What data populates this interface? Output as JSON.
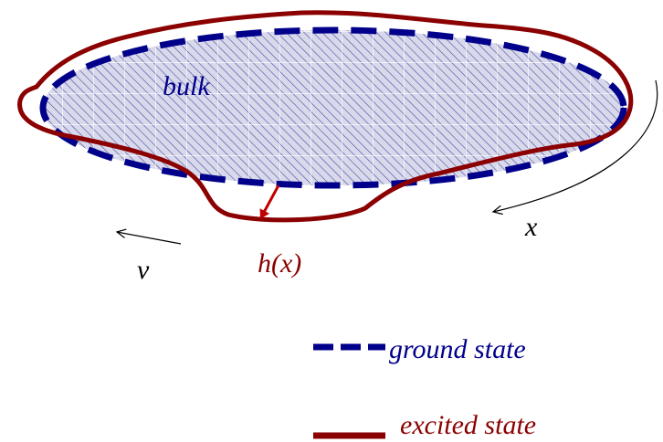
{
  "labels": {
    "bulk": "bulk",
    "height": "h(x)",
    "coordinate": "x",
    "velocity": "v"
  },
  "legend": [
    {
      "label": "ground state"
    },
    {
      "label": "excited state"
    }
  ]
}
